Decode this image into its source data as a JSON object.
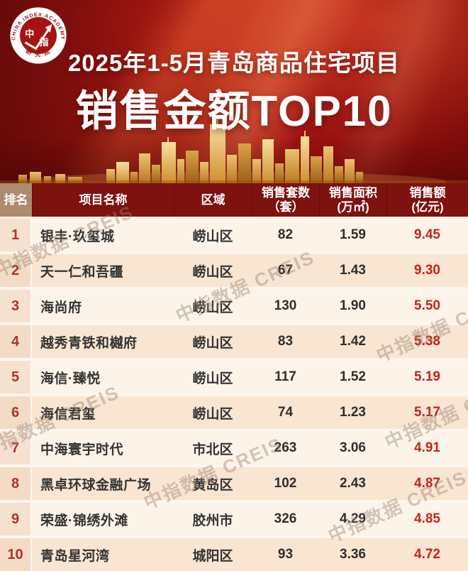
{
  "hero": {
    "logo": {
      "ring_text_top": "CHINA INDEX ACADEMY",
      "ring_text_bottom": "研 究 院",
      "center_char_left": "中",
      "center_char_right": "指"
    },
    "title_line1": "2025年1-5月青岛商品住宅项目",
    "title_line2": "销售金额TOP10"
  },
  "watermark": {
    "text": "中指数据 CREIS"
  },
  "colors": {
    "hero_red": "#a81712",
    "hero_red_bright": "#c53b22",
    "header_maroon": "#7d120f",
    "rank_header_tan": "#ae8a6f",
    "row_odd_bg": "#fdf4e9",
    "row_even_bg": "#f8e5d2",
    "rank_number_red": "#a93528",
    "amount_red": "#c0251c",
    "skyline_gold": "#d99a3a",
    "text_dark": "#333333"
  },
  "table": {
    "columns": [
      {
        "key": "rank",
        "label": "排名",
        "unit": ""
      },
      {
        "key": "name",
        "label": "项目名称",
        "unit": ""
      },
      {
        "key": "region",
        "label": "区域",
        "unit": ""
      },
      {
        "key": "units",
        "label": "销售套数",
        "unit": "（套）"
      },
      {
        "key": "area",
        "label": "销售面积",
        "unit": "(万㎡)"
      },
      {
        "key": "amount",
        "label": "销售额",
        "unit": "(亿元)"
      }
    ],
    "rows": [
      {
        "rank": "1",
        "name": "银丰·玖玺城",
        "region": "崂山区",
        "units": "82",
        "area": "1.59",
        "amount": "9.45"
      },
      {
        "rank": "2",
        "name": "天一仁和吾疆",
        "region": "崂山区",
        "units": "67",
        "area": "1.43",
        "amount": "9.30"
      },
      {
        "rank": "3",
        "name": "海尚府",
        "region": "崂山区",
        "units": "130",
        "area": "1.90",
        "amount": "5.50"
      },
      {
        "rank": "4",
        "name": "越秀青铁和樾府",
        "region": "崂山区",
        "units": "83",
        "area": "1.42",
        "amount": "5.38"
      },
      {
        "rank": "5",
        "name": "海信·臻悦",
        "region": "崂山区",
        "units": "117",
        "area": "1.52",
        "amount": "5.19"
      },
      {
        "rank": "6",
        "name": "海信君玺",
        "region": "崂山区",
        "units": "74",
        "area": "1.23",
        "amount": "5.17"
      },
      {
        "rank": "7",
        "name": "中海寰宇时代",
        "region": "市北区",
        "units": "263",
        "area": "3.06",
        "amount": "4.91"
      },
      {
        "rank": "8",
        "name": "黑卓环球金融广场",
        "region": "黄岛区",
        "units": "102",
        "area": "2.43",
        "amount": "4.87"
      },
      {
        "rank": "9",
        "name": "荣盛·锦绣外滩",
        "region": "胶州市",
        "units": "326",
        "area": "4.29",
        "amount": "4.85"
      },
      {
        "rank": "10",
        "name": "青岛星河湾",
        "region": "城阳区",
        "units": "93",
        "area": "3.36",
        "amount": "4.72"
      }
    ]
  },
  "chart_data": {
    "type": "table",
    "title": "2025年1-5月青岛商品住宅项目 销售金额TOP10",
    "categories": [
      "银丰·玖玺城",
      "天一仁和吾疆",
      "海尚府",
      "越秀青铁和樾府",
      "海信·臻悦",
      "海信君玺",
      "中海寰宇时代",
      "黑卓环球金融广场",
      "荣盛·锦绣外滩",
      "青岛星河湾"
    ],
    "series": [
      {
        "name": "区域",
        "values": [
          "崂山区",
          "崂山区",
          "崂山区",
          "崂山区",
          "崂山区",
          "崂山区",
          "市北区",
          "黄岛区",
          "胶州市",
          "城阳区"
        ]
      },
      {
        "name": "销售套数(套)",
        "values": [
          82,
          67,
          130,
          83,
          117,
          74,
          263,
          102,
          326,
          93
        ]
      },
      {
        "name": "销售面积(万㎡)",
        "values": [
          1.59,
          1.43,
          1.9,
          1.42,
          1.52,
          1.23,
          3.06,
          2.43,
          4.29,
          3.36
        ]
      },
      {
        "name": "销售额(亿元)",
        "values": [
          9.45,
          9.3,
          5.5,
          5.38,
          5.19,
          5.17,
          4.91,
          4.87,
          4.85,
          4.72
        ]
      }
    ]
  }
}
